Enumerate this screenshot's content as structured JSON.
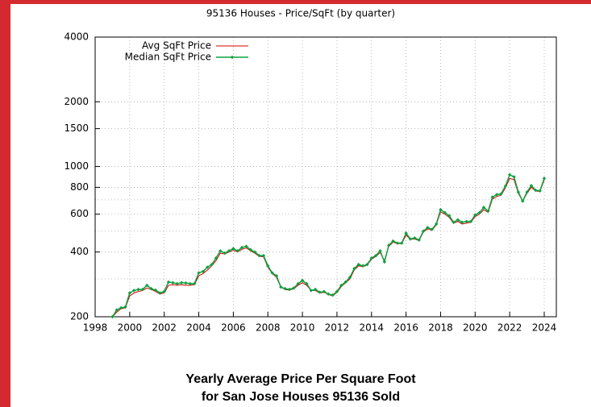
{
  "chart_data": {
    "type": "line",
    "title": "95136 Houses - Price/SqFt (by quarter)",
    "caption_lines": [
      "Yearly Average Price Per Square Foot",
      "for San Jose Houses 95136 Sold"
    ],
    "log_y": true,
    "grid": true,
    "legend": "top-left",
    "xlim": [
      1998,
      2024.7
    ],
    "xticks": [
      1998,
      2000,
      2002,
      2004,
      2006,
      2008,
      2010,
      2012,
      2014,
      2016,
      2018,
      2020,
      2022,
      2024
    ],
    "ylim": [
      200,
      4000
    ],
    "yticks": [
      200,
      400,
      600,
      800,
      1000,
      1500,
      2000,
      4000
    ],
    "minor_yticks": [
      300,
      500,
      700
    ],
    "x": [
      1999,
      1999.25,
      1999.5,
      1999.75,
      2000,
      2000.25,
      2000.5,
      2000.75,
      2001,
      2001.25,
      2001.5,
      2001.75,
      2002,
      2002.25,
      2002.5,
      2002.75,
      2003,
      2003.25,
      2003.5,
      2003.75,
      2004,
      2004.25,
      2004.5,
      2004.75,
      2005,
      2005.25,
      2005.5,
      2005.75,
      2006,
      2006.25,
      2006.5,
      2006.75,
      2007,
      2007.25,
      2007.5,
      2007.75,
      2008,
      2008.25,
      2008.5,
      2008.75,
      2009,
      2009.25,
      2009.5,
      2009.75,
      2010,
      2010.25,
      2010.5,
      2010.75,
      2011,
      2011.25,
      2011.5,
      2011.75,
      2012,
      2012.25,
      2012.5,
      2012.75,
      2013,
      2013.25,
      2013.5,
      2013.75,
      2014,
      2014.25,
      2014.5,
      2014.75,
      2015,
      2015.25,
      2015.5,
      2015.75,
      2016,
      2016.25,
      2016.5,
      2016.75,
      2017,
      2017.25,
      2017.5,
      2017.75,
      2018,
      2018.25,
      2018.5,
      2018.75,
      2019,
      2019.25,
      2019.5,
      2019.75,
      2020,
      2020.25,
      2020.5,
      2020.75,
      2021,
      2021.25,
      2021.5,
      2021.75,
      2022,
      2022.25,
      2022.5,
      2022.75,
      2023,
      2023.25,
      2023.5,
      2023.75,
      2024
    ],
    "series": [
      {
        "name": "Avg SqFt Price",
        "color": "#d40000",
        "values": [
          200,
          210,
          218,
          220,
          250,
          258,
          262,
          265,
          272,
          268,
          262,
          255,
          258,
          280,
          282,
          280,
          282,
          280,
          280,
          282,
          310,
          318,
          330,
          345,
          365,
          395,
          392,
          400,
          408,
          400,
          412,
          418,
          405,
          395,
          382,
          380,
          340,
          318,
          305,
          275,
          268,
          266,
          270,
          280,
          288,
          280,
          265,
          265,
          258,
          260,
          254,
          250,
          260,
          276,
          288,
          300,
          330,
          345,
          342,
          348,
          370,
          382,
          398,
          365,
          425,
          445,
          438,
          438,
          480,
          458,
          460,
          452,
          495,
          512,
          505,
          535,
          615,
          600,
          580,
          545,
          555,
          540,
          545,
          550,
          585,
          600,
          630,
          612,
          705,
          725,
          735,
          795,
          880,
          870,
          750,
          690,
          750,
          800,
          770,
          765,
          865
        ]
      },
      {
        "name": "Median SqFt Price",
        "color": "#10a040",
        "values": [
          200,
          215,
          220,
          222,
          258,
          265,
          268,
          268,
          280,
          270,
          266,
          258,
          262,
          290,
          288,
          285,
          288,
          287,
          285,
          285,
          320,
          325,
          340,
          350,
          375,
          405,
          395,
          405,
          415,
          405,
          420,
          425,
          410,
          400,
          385,
          385,
          345,
          320,
          310,
          275,
          270,
          268,
          272,
          285,
          295,
          285,
          265,
          268,
          260,
          262,
          255,
          252,
          262,
          280,
          290,
          305,
          335,
          350,
          345,
          350,
          375,
          385,
          405,
          360,
          430,
          450,
          440,
          440,
          490,
          460,
          465,
          455,
          500,
          520,
          510,
          540,
          630,
          610,
          590,
          550,
          565,
          550,
          555,
          555,
          595,
          610,
          645,
          620,
          720,
          740,
          745,
          810,
          915,
          895,
          760,
          690,
          760,
          815,
          775,
          770,
          880
        ]
      }
    ]
  }
}
